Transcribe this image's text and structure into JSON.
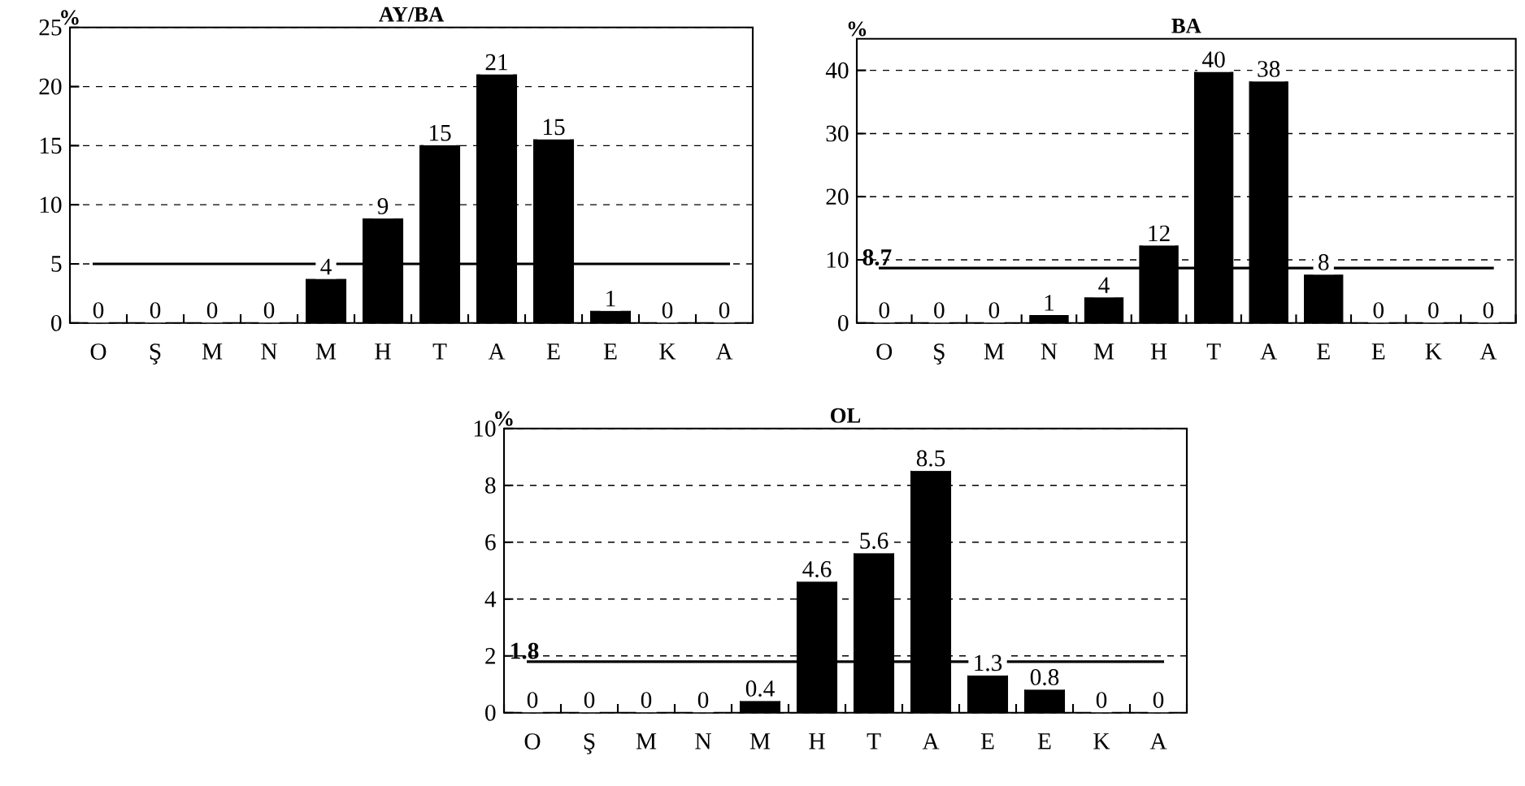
{
  "chart_data": [
    {
      "type": "bar",
      "title": "AY/BA",
      "ylabel": "%",
      "categories": [
        "O",
        "Ş",
        "M",
        "N",
        "M",
        "H",
        "T",
        "A",
        "E",
        "E",
        "K",
        "A"
      ],
      "values": [
        0,
        0,
        0,
        0,
        3.7,
        8.8,
        15,
        21,
        15.5,
        1,
        0,
        0
      ],
      "value_labels": [
        "0",
        "0",
        "0",
        "0",
        "4",
        "9",
        "15",
        "21",
        "15",
        "1",
        "0",
        "0"
      ],
      "color": "#000000",
      "ylim": [
        0,
        25
      ],
      "yticks": [
        0,
        5,
        10,
        15,
        20,
        25
      ],
      "grid": "y",
      "ref_lines": [
        {
          "axis": "y",
          "value": 5,
          "color": "#000000"
        }
      ]
    },
    {
      "type": "bar",
      "title": "BA",
      "ylabel": "%",
      "categories": [
        "O",
        "Ş",
        "M",
        "N",
        "M",
        "H",
        "T",
        "A",
        "E",
        "E",
        "K",
        "A"
      ],
      "values": [
        0,
        0,
        0,
        1.2,
        4,
        12.2,
        39.7,
        38.2,
        7.6,
        0,
        0,
        0
      ],
      "value_labels": [
        "0",
        "0",
        "0",
        "1",
        "4",
        "12",
        "40",
        "38",
        "8",
        "0",
        "0",
        "0"
      ],
      "color": "#000000",
      "ylim": [
        0,
        45
      ],
      "yticks": [
        0,
        10,
        20,
        30,
        40
      ],
      "grid": "y",
      "ref_lines": [
        {
          "axis": "y",
          "value": 8.7,
          "label": "8.7",
          "color": "#000000"
        }
      ]
    },
    {
      "type": "bar",
      "title": "OL",
      "ylabel": "%",
      "categories": [
        "O",
        "Ş",
        "M",
        "N",
        "M",
        "H",
        "T",
        "A",
        "E",
        "E",
        "K",
        "A"
      ],
      "values": [
        0,
        0,
        0,
        0,
        0.4,
        4.6,
        5.6,
        8.5,
        1.3,
        0.8,
        0,
        0
      ],
      "value_labels": [
        "0",
        "0",
        "0",
        "0",
        "0.4",
        "4.6",
        "5.6",
        "8.5",
        "1.3",
        "0.8",
        "0",
        "0"
      ],
      "color": "#000000",
      "ylim": [
        0,
        10
      ],
      "yticks": [
        0,
        2,
        4,
        6,
        8,
        10
      ],
      "grid": "y",
      "ref_lines": [
        {
          "axis": "y",
          "value": 1.8,
          "label": "1.8",
          "color": "#000000"
        }
      ]
    }
  ]
}
